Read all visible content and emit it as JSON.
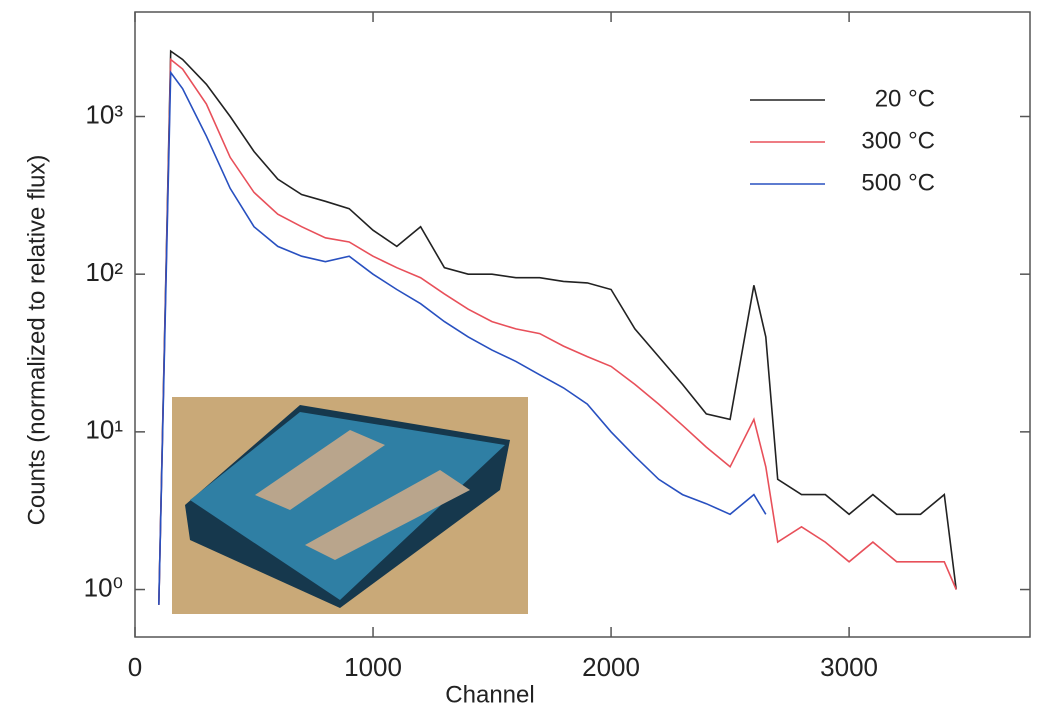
{
  "chart_data": {
    "type": "line",
    "log_y": true,
    "xlabel": "Channel",
    "ylabel": "Counts (normalized to relative flux)",
    "xlim": [
      0,
      3760
    ],
    "xticks": [
      0,
      1000,
      2000,
      3000
    ],
    "ylim": [
      0.5,
      4600
    ],
    "yticks": [
      {
        "value": 1,
        "label": "10⁰"
      },
      {
        "value": 10,
        "label": "10¹"
      },
      {
        "value": 100,
        "label": "10²"
      },
      {
        "value": 1000,
        "label": "10³"
      }
    ],
    "legend": "upper right",
    "x": [
      100,
      150,
      200,
      300,
      400,
      500,
      600,
      700,
      800,
      900,
      1000,
      1100,
      1200,
      1300,
      1400,
      1500,
      1600,
      1700,
      1800,
      1900,
      2000,
      2100,
      2200,
      2300,
      2400,
      2500,
      2600,
      2650,
      2700,
      2800,
      2900,
      3000,
      3100,
      3200,
      3300,
      3400,
      3450
    ],
    "series": [
      {
        "name": "20 °C",
        "color": "#222222",
        "values": [
          0.8,
          2600,
          2300,
          1600,
          1000,
          600,
          400,
          320,
          290,
          260,
          190,
          150,
          200,
          110,
          100,
          100,
          95,
          95,
          90,
          88,
          80,
          45,
          30,
          20,
          13,
          12,
          85,
          40,
          5,
          4,
          4,
          3,
          4,
          3,
          3,
          4,
          1
        ]
      },
      {
        "name": "300 °C",
        "color": "#e8505a",
        "values": [
          0.8,
          2300,
          2000,
          1200,
          550,
          330,
          240,
          200,
          170,
          160,
          130,
          110,
          95,
          75,
          60,
          50,
          45,
          42,
          35,
          30,
          26,
          20,
          15,
          11,
          8,
          6,
          12,
          6,
          2,
          2.5,
          2,
          1.5,
          2,
          1.5,
          1.5,
          1.5,
          1
        ]
      },
      {
        "name": "500 °C",
        "color": "#2850c0",
        "values": [
          0.8,
          1900,
          1500,
          750,
          350,
          200,
          150,
          130,
          120,
          130,
          100,
          80,
          65,
          50,
          40,
          33,
          28,
          23,
          19,
          15,
          10,
          7,
          5,
          4,
          3.5,
          3,
          4,
          3,
          null,
          null,
          null,
          null,
          null,
          null,
          null,
          null,
          null
        ]
      }
    ]
  }
}
